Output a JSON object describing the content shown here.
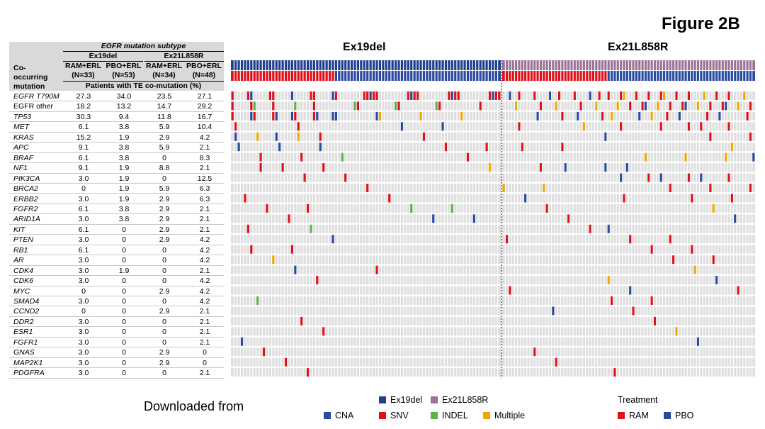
{
  "figure_label": "Figure 2B",
  "chart_data": {
    "type": "table",
    "title": "Figure 2B",
    "table": {
      "super_header": "EGFR mutation subtype",
      "row_header": [
        "Co-",
        "occurring",
        "mutation"
      ],
      "groups": [
        "Ex19del",
        "Ex21L858R"
      ],
      "columns": [
        {
          "arm": "RAM+ERL",
          "n": "(N=33)"
        },
        {
          "arm": "PBO+ERL",
          "n": "(N=53)"
        },
        {
          "arm": "RAM+ERL",
          "n": "(N=34)"
        },
        {
          "arm": "PBO+ERL",
          "n": "(N=48)"
        }
      ],
      "value_header": "Patients with TE co-mutation (%)",
      "rows": [
        {
          "gene": "EGFR T790M",
          "values": [
            "27.3",
            "34.0",
            "23.5",
            "27.1"
          ]
        },
        {
          "gene": "EGFR other",
          "values": [
            "18.2",
            "13.2",
            "14.7",
            "29.2"
          ]
        },
        {
          "gene": "TP53",
          "values": [
            "30.3",
            "9.4",
            "11.8",
            "16.7"
          ]
        },
        {
          "gene": "MET",
          "values": [
            "6.1",
            "3.8",
            "5.9",
            "10.4"
          ]
        },
        {
          "gene": "KRAS",
          "values": [
            "15.2",
            "1.9",
            "2.9",
            "4.2"
          ]
        },
        {
          "gene": "APC",
          "values": [
            "9.1",
            "3.8",
            "5.9",
            "2.1"
          ]
        },
        {
          "gene": "BRAF",
          "values": [
            "6.1",
            "3.8",
            "0",
            "8.3"
          ]
        },
        {
          "gene": "NF1",
          "values": [
            "9.1",
            "1.9",
            "8.8",
            "2.1"
          ]
        },
        {
          "gene": "PIK3CA",
          "values": [
            "3.0",
            "1.9",
            "0",
            "12.5"
          ]
        },
        {
          "gene": "BRCA2",
          "values": [
            "0",
            "1.9",
            "5.9",
            "6.3"
          ]
        },
        {
          "gene": "ERBB2",
          "values": [
            "3.0",
            "1.9",
            "2.9",
            "6.3"
          ]
        },
        {
          "gene": "FGFR2",
          "values": [
            "6.1",
            "3.8",
            "2.9",
            "2.1"
          ]
        },
        {
          "gene": "ARID1A",
          "values": [
            "3.0",
            "3.8",
            "2.9",
            "2.1"
          ]
        },
        {
          "gene": "KIT",
          "values": [
            "6.1",
            "0",
            "2.9",
            "2.1"
          ]
        },
        {
          "gene": "PTEN",
          "values": [
            "3.0",
            "0",
            "2.9",
            "4.2"
          ]
        },
        {
          "gene": "RB1",
          "values": [
            "6.1",
            "0",
            "0",
            "4.2"
          ]
        },
        {
          "gene": "AR",
          "values": [
            "3.0",
            "0",
            "0",
            "4.2"
          ]
        },
        {
          "gene": "CDK4",
          "values": [
            "3.0",
            "1.9",
            "0",
            "2.1"
          ]
        },
        {
          "gene": "CDK6",
          "values": [
            "3.0",
            "0",
            "0",
            "4.2"
          ]
        },
        {
          "gene": "MYC",
          "values": [
            "0",
            "0",
            "2.9",
            "4.2"
          ]
        },
        {
          "gene": "SMAD4",
          "values": [
            "3.0",
            "0",
            "0",
            "4.2"
          ]
        },
        {
          "gene": "CCND2",
          "values": [
            "0",
            "0",
            "2.9",
            "2.1"
          ]
        },
        {
          "gene": "DDR2",
          "values": [
            "3.0",
            "0",
            "0",
            "2.1"
          ]
        },
        {
          "gene": "ESR1",
          "values": [
            "3.0",
            "0",
            "0",
            "2.1"
          ]
        },
        {
          "gene": "FGFR1",
          "values": [
            "3.0",
            "0",
            "0",
            "2.1"
          ]
        },
        {
          "gene": "GNAS",
          "values": [
            "3.0",
            "0",
            "2.9",
            "0"
          ]
        },
        {
          "gene": "MAP2K1",
          "values": [
            "3.0",
            "0",
            "2.9",
            "0"
          ]
        },
        {
          "gene": "PDGFRA",
          "values": [
            "3.0",
            "0",
            "0",
            "2.1"
          ]
        }
      ]
    },
    "oncoprint": {
      "panels": [
        {
          "title": "Ex19del",
          "n_ram": 33,
          "n_pbo": 53
        },
        {
          "title": "Ex21L858R",
          "n_ram": 34,
          "n_pbo": 48
        }
      ],
      "legend_subtype": [
        {
          "label": "Ex19del",
          "color": "#1f3f8f"
        },
        {
          "label": "Ex21L858R",
          "color": "#9a7197"
        }
      ],
      "legend_alteration": [
        {
          "label": "CNA",
          "color": "#2a4aa0"
        },
        {
          "label": "SNV",
          "color": "#e0101a"
        },
        {
          "label": "INDEL",
          "color": "#5db04a"
        },
        {
          "label": "Multiple",
          "color": "#f0a800"
        }
      ],
      "legend_treatment_title": "Treatment",
      "legend_treatment": [
        {
          "label": "RAM",
          "color": "#e0101a"
        },
        {
          "label": "PBO",
          "color": "#2a4aa0"
        }
      ]
    }
  },
  "footer_text": "Downloaded from"
}
